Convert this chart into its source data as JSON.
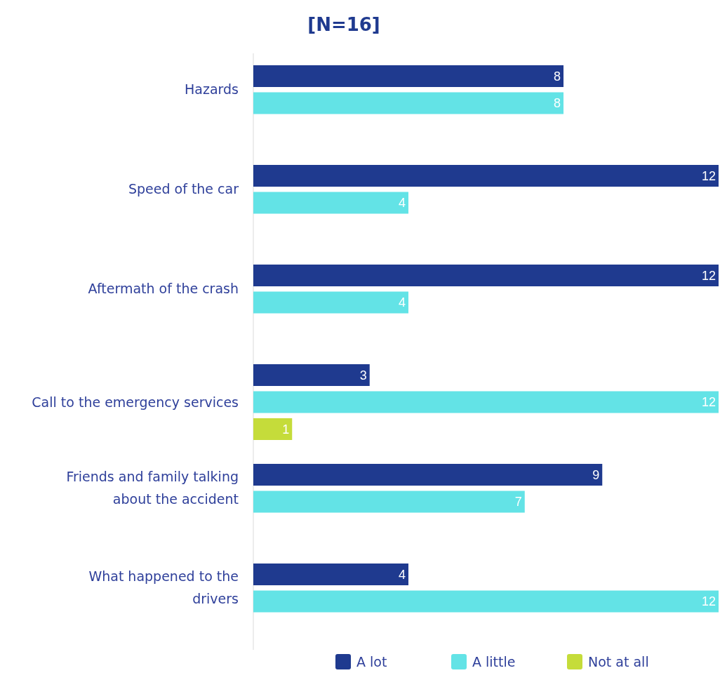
{
  "chart_data": {
    "type": "bar",
    "orientation": "horizontal",
    "title": "[N=16]",
    "categories": [
      "Hazards",
      "Speed of the car",
      "Aftermath of the crash",
      "Call to the emergency services",
      "Friends and family talking\nabout the accident",
      "What happened to the\ndrivers"
    ],
    "series": [
      {
        "name": "A lot",
        "color": "#1f3a8f",
        "values": [
          8,
          12,
          12,
          3,
          9,
          4
        ]
      },
      {
        "name": "A little",
        "color": "#63e3e6",
        "values": [
          8,
          4,
          4,
          12,
          7,
          12
        ]
      },
      {
        "name": "Not at all",
        "color": "#c5dc3a",
        "values": [
          null,
          null,
          null,
          1,
          null,
          null
        ]
      }
    ],
    "xlim": [
      0,
      12
    ],
    "data_labels": true,
    "legend": "bottom"
  }
}
